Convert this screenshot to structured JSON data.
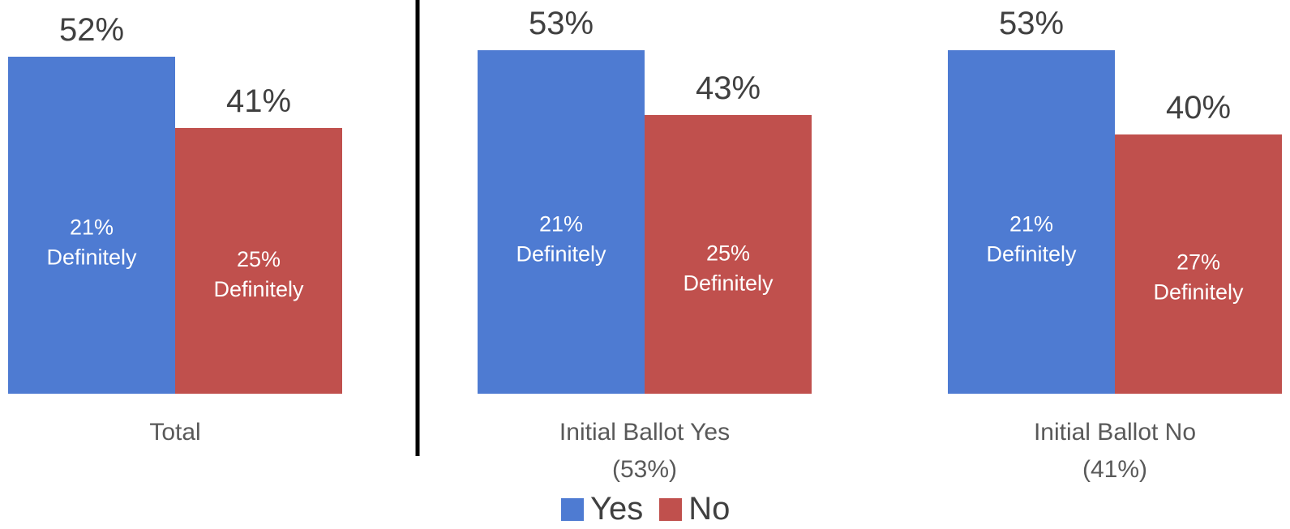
{
  "chart_data": {
    "type": "bar",
    "categories": [
      "Total",
      "Initial Ballot Yes\n(53%)",
      "Initial Ballot No\n(41%)"
    ],
    "series": [
      {
        "name": "Yes",
        "color": "#4e7bd2",
        "values": [
          52,
          53,
          53
        ],
        "value_labels": [
          "52%",
          "53%",
          "53%"
        ],
        "inner_labels": [
          "21%\nDefinitely",
          "21%\nDefinitely",
          "21%\nDefinitely"
        ]
      },
      {
        "name": "No",
        "color": "#c0504d",
        "values": [
          41,
          43,
          40
        ],
        "value_labels": [
          "41%",
          "43%",
          "40%"
        ],
        "inner_labels": [
          "25%\nDefinitely",
          "25%\nDefinitely",
          "27%\nDefinitely"
        ]
      }
    ],
    "ylim": [
      0,
      60
    ],
    "grid": false,
    "legend_position": "bottom",
    "separator_after_category": 0
  }
}
